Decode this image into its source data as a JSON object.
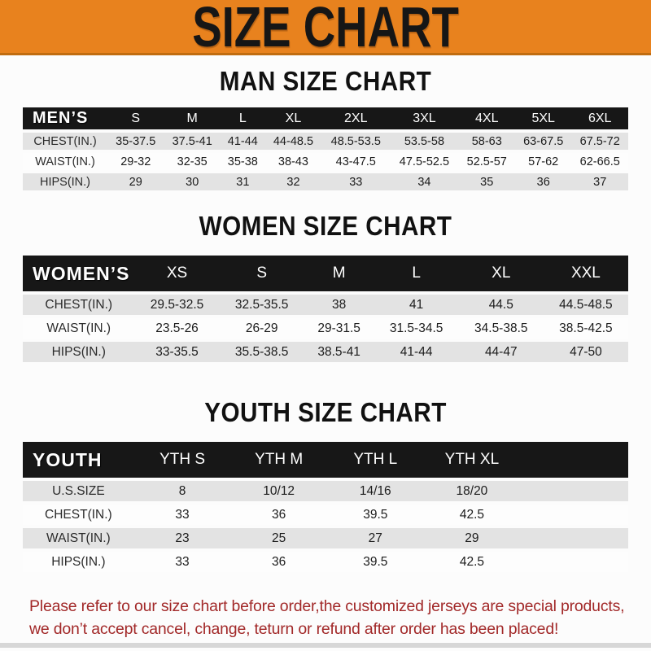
{
  "banner": {
    "title": "SIZE CHART"
  },
  "chart_data": [
    {
      "type": "table",
      "title": "MAN SIZE CHART",
      "columns": [
        "MEN’S",
        "S",
        "M",
        "L",
        "XL",
        "2XL",
        "3XL",
        "4XL",
        "5XL",
        "6XL"
      ],
      "rows": [
        [
          "CHEST(IN.)",
          "35-37.5",
          "37.5-41",
          "41-44",
          "44-48.5",
          "48.5-53.5",
          "53.5-58",
          "58-63",
          "63-67.5",
          "67.5-72"
        ],
        [
          "WAIST(IN.)",
          "29-32",
          "32-35",
          "35-38",
          "38-43",
          "43-47.5",
          "47.5-52.5",
          "52.5-57",
          "57-62",
          "62-66.5"
        ],
        [
          "HIPS(IN.)",
          "29",
          "30",
          "31",
          "32",
          "33",
          "34",
          "35",
          "36",
          "37"
        ]
      ]
    },
    {
      "type": "table",
      "title": "WOMEN SIZE CHART",
      "columns": [
        "WOMEN’S",
        "XS",
        "S",
        "M",
        "L",
        "XL",
        "XXL"
      ],
      "rows": [
        [
          "CHEST(IN.)",
          "29.5-32.5",
          "32.5-35.5",
          "38",
          "41",
          "44.5",
          "44.5-48.5"
        ],
        [
          "WAIST(IN.)",
          "23.5-26",
          "26-29",
          "29-31.5",
          "31.5-34.5",
          "34.5-38.5",
          "38.5-42.5"
        ],
        [
          "HIPS(IN.)",
          "33-35.5",
          "35.5-38.5",
          "38.5-41",
          "41-44",
          "44-47",
          "47-50"
        ]
      ]
    },
    {
      "type": "table",
      "title": "YOUTH SIZE CHART",
      "columns": [
        "YOUTH",
        "YTH S",
        "YTH M",
        "YTH L",
        "YTH XL"
      ],
      "trailing_blank_column": true,
      "rows": [
        [
          "U.S.SIZE",
          "8",
          "10/12",
          "14/16",
          "18/20"
        ],
        [
          "CHEST(IN.)",
          "33",
          "36",
          "39.5",
          "42.5"
        ],
        [
          "WAIST(IN.)",
          "23",
          "25",
          "27",
          "29"
        ],
        [
          "HIPS(IN.)",
          "33",
          "36",
          "39.5",
          "42.5"
        ]
      ]
    }
  ],
  "note": {
    "line1": "Please refer to our size chart before order,the customized jerseys are special products,",
    "line2": "we don’t accept cancel, change, teturn or refund after order has been placed!"
  },
  "colors": {
    "banner_bg": "#E8821E",
    "banner_border": "#C06C10",
    "banner_text": "#161616",
    "table_header_bg": "#171717",
    "table_header_text": "#FFFFFF",
    "row_stripe": "#E3E3E3",
    "row_plain": "#FDFDFD",
    "note_text": "#A22929"
  }
}
